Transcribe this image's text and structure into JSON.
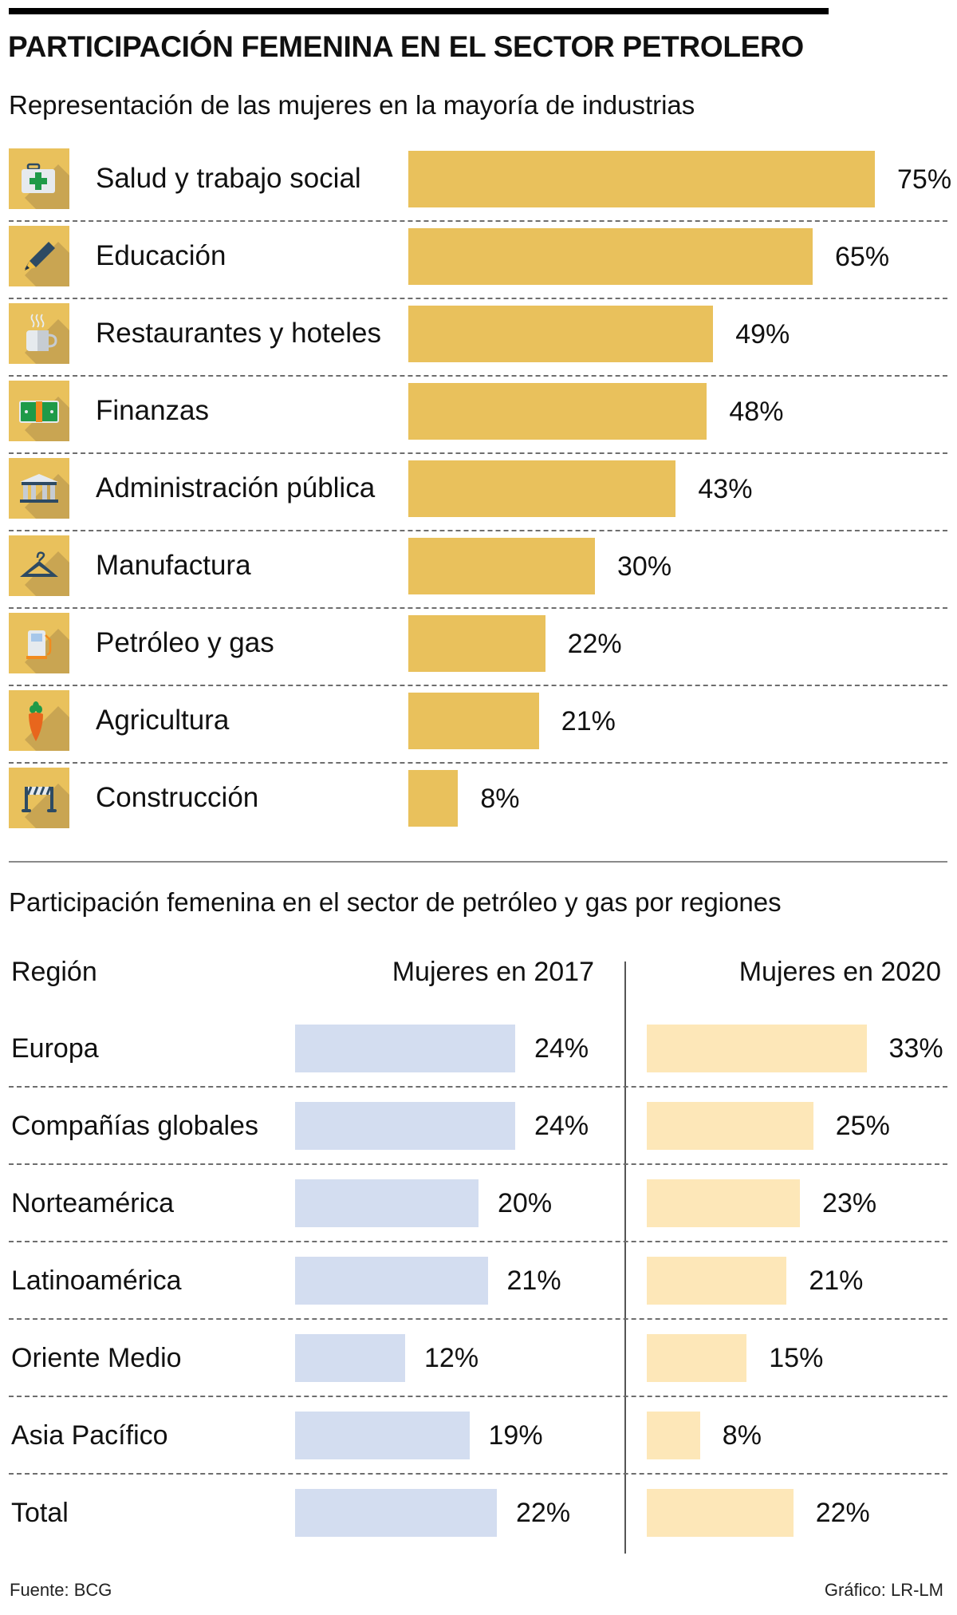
{
  "header": {
    "title": "PARTICIPACIÓN FEMENINA EN EL SECTOR PETROLERO",
    "subtitle_industries": "Representación de las mujeres en la mayoría de industrias",
    "subtitle_regions": "Participación femenina  en el sector de petróleo y gas por regiones"
  },
  "colors": {
    "industry_bar": "#e9c15c",
    "bar_2017": "#d3ddf0",
    "bar_2020": "#fde7b8"
  },
  "industries": [
    {
      "label": "Salud y trabajo social",
      "value": 75,
      "value_label": "75%",
      "icon": "first-aid-kit-icon"
    },
    {
      "label": "Educación",
      "value": 65,
      "value_label": "65%",
      "icon": "pencil-icon"
    },
    {
      "label": "Restaurantes y hoteles",
      "value": 49,
      "value_label": "49%",
      "icon": "coffee-cup-icon"
    },
    {
      "label": "Finanzas",
      "value": 48,
      "value_label": "48%",
      "icon": "banknote-icon"
    },
    {
      "label": "Administración pública",
      "value": 43,
      "value_label": "43%",
      "icon": "government-building-icon"
    },
    {
      "label": "Manufactura",
      "value": 30,
      "value_label": "30%",
      "icon": "hanger-icon"
    },
    {
      "label": "Petróleo y gas",
      "value": 22,
      "value_label": "22%",
      "icon": "fuel-pump-icon"
    },
    {
      "label": "Agricultura",
      "value": 21,
      "value_label": "21%",
      "icon": "carrot-icon"
    },
    {
      "label": "Construcción",
      "value": 8,
      "value_label": "8%",
      "icon": "road-barrier-icon"
    }
  ],
  "regions_table": {
    "col_region": "Región",
    "col_2017": "Mujeres en 2017",
    "col_2020": "Mujeres en 2020",
    "rows": [
      {
        "region": "Europa",
        "v2017": 24,
        "l2017": "24%",
        "v2020": 33,
        "l2020": "33%"
      },
      {
        "region": "Compañías globales",
        "v2017": 24,
        "l2017": "24%",
        "v2020": 25,
        "l2020": "25%"
      },
      {
        "region": "Norteamérica",
        "v2017": 20,
        "l2017": "20%",
        "v2020": 23,
        "l2020": "23%"
      },
      {
        "region": "Latinoamérica",
        "v2017": 21,
        "l2017": "21%",
        "v2020": 21,
        "l2020": "21%"
      },
      {
        "region": "Oriente Medio",
        "v2017": 12,
        "l2017": "12%",
        "v2020": 15,
        "l2020": "15%"
      },
      {
        "region": "Asia Pacífico",
        "v2017": 19,
        "l2017": "19%",
        "v2020": 8,
        "l2020": "8%"
      },
      {
        "region": "Total",
        "v2017": 22,
        "l2017": "22%",
        "v2020": 22,
        "l2020": "22%"
      }
    ]
  },
  "footer": {
    "source": "Fuente: BCG",
    "credit": "Gráfico: LR-LM"
  },
  "chart_data": [
    {
      "type": "bar",
      "orientation": "horizontal",
      "title": "Representación de las mujeres en la mayoría de industrias",
      "categories": [
        "Salud y trabajo social",
        "Educación",
        "Restaurantes y hoteles",
        "Finanzas",
        "Administración pública",
        "Manufactura",
        "Petróleo y gas",
        "Agricultura",
        "Construcción"
      ],
      "values": [
        75,
        65,
        49,
        48,
        43,
        30,
        22,
        21,
        8
      ],
      "unit": "%",
      "xlabel": "",
      "ylabel": "",
      "grid": false
    },
    {
      "type": "bar",
      "orientation": "horizontal",
      "title": "Participación femenina en el sector de petróleo y gas por regiones",
      "categories": [
        "Europa",
        "Compañías globales",
        "Norteamérica",
        "Latinoamérica",
        "Oriente Medio",
        "Asia Pacífico",
        "Total"
      ],
      "series": [
        {
          "name": "Mujeres en 2017",
          "values": [
            24,
            24,
            20,
            21,
            12,
            19,
            22
          ]
        },
        {
          "name": "Mujeres en 2020",
          "values": [
            33,
            25,
            23,
            21,
            15,
            8,
            22
          ]
        }
      ],
      "unit": "%",
      "grid": false
    }
  ]
}
